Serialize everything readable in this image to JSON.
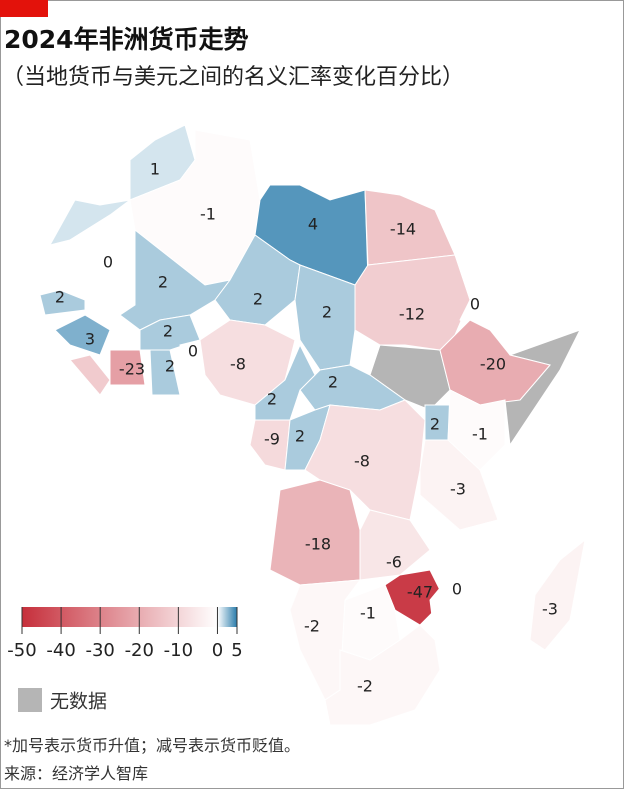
{
  "chart_data": {
    "type": "choropleth",
    "title": "2024年非洲货币走势",
    "subtitle": "（当地货币与美元之间的名义汇率变化百分比）",
    "values": [
      1,
      -1,
      4,
      -14,
      0,
      2,
      -12,
      0,
      2,
      2,
      2,
      -20,
      2,
      3,
      0,
      2,
      -8,
      -23,
      2,
      2,
      2,
      -1,
      -9,
      2,
      -8,
      -3,
      -18,
      -6,
      -47,
      0,
      -1,
      -2,
      -3,
      -2
    ],
    "colors": {
      "min": "#c62f3b",
      "mid": "#ffffff",
      "max": "#2a7cab",
      "no_data": "#b5b5b5"
    },
    "colorbar": {
      "lim": [
        -50,
        5
      ],
      "ticks": [
        -50,
        -40,
        -30,
        -20,
        -10,
        0,
        5
      ]
    },
    "no_data_label": "无数据",
    "footnote": "*加号表示货币升值；减号表示货币贬值。",
    "source": "来源：经济学人智库"
  }
}
